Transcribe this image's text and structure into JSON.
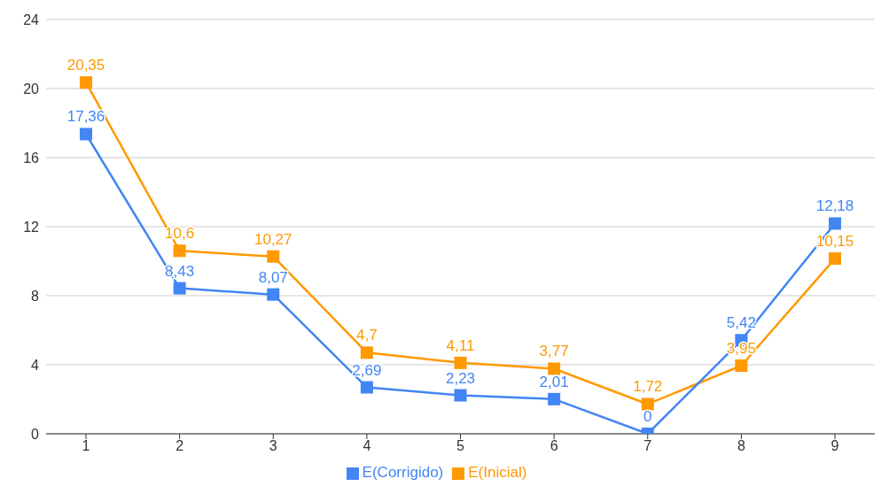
{
  "chart_data": {
    "type": "line",
    "categories": [
      "1",
      "2",
      "3",
      "4",
      "5",
      "6",
      "7",
      "8",
      "9"
    ],
    "series": [
      {
        "name": "E(Inicial)",
        "color": "#ff9900",
        "values": [
          20.35,
          10.6,
          10.27,
          4.7,
          4.11,
          3.77,
          1.72,
          3.95,
          10.15
        ],
        "value_labels": [
          "20,35",
          "10,6",
          "10,27",
          "4,7",
          "4,11",
          "3,77",
          "1,72",
          "3,95",
          "10,15"
        ]
      },
      {
        "name": "E(Corrigido)",
        "color": "#4285f4",
        "values": [
          17.36,
          8.43,
          8.07,
          2.69,
          2.23,
          2.01,
          0,
          5.42,
          12.18
        ],
        "value_labels": [
          "17,36",
          "8,43",
          "8,07",
          "2,69",
          "2,23",
          "2,01",
          "0",
          "5,42",
          "12,18"
        ]
      }
    ],
    "ylim": [
      0,
      24
    ],
    "yticks": [
      0,
      4,
      8,
      12,
      16,
      20,
      24
    ],
    "grid": "y",
    "legend": "bottom",
    "marker": "square",
    "line_style": "solid"
  }
}
